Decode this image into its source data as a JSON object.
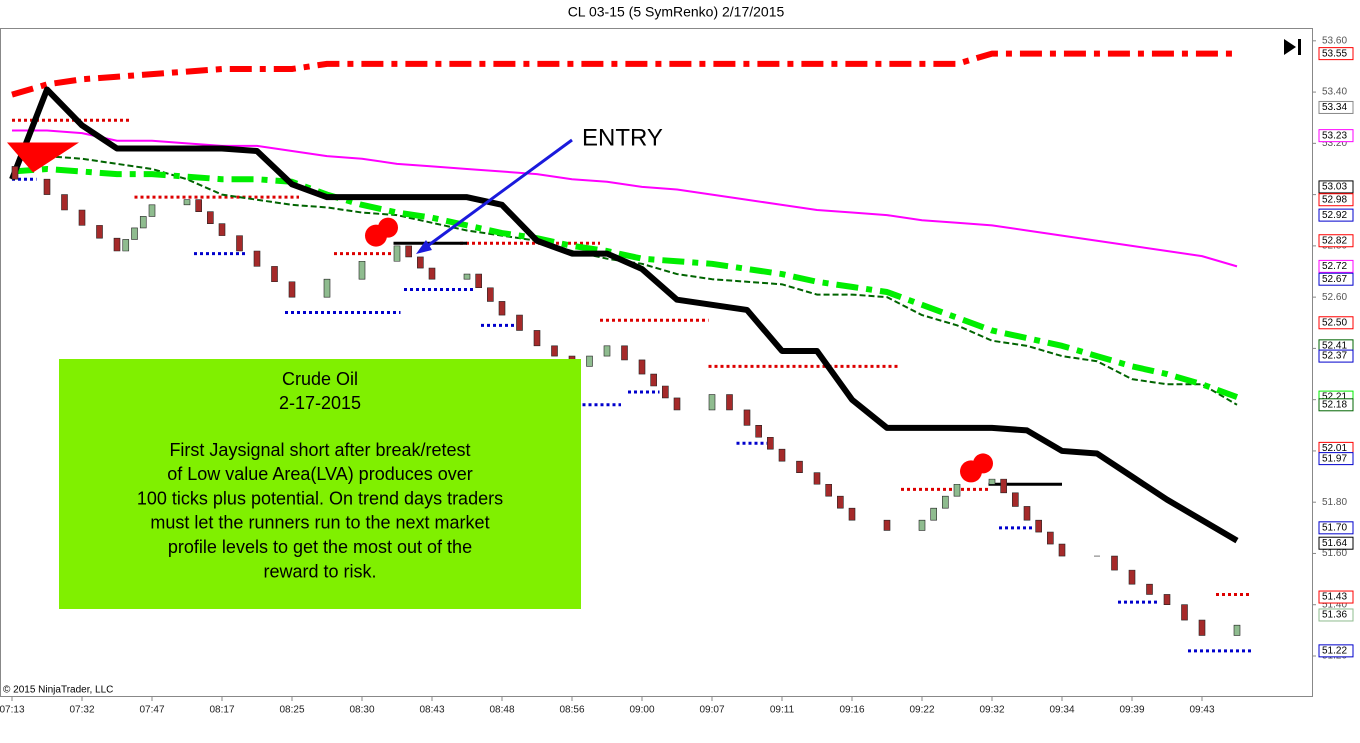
{
  "chart_data": {
    "type": "renko",
    "title": "CL 03-15 (5 SymRenko)  2/17/2015",
    "copyright": "© 2015 NinjaTrader, LLC",
    "annotation": "ENTRY",
    "text_box": {
      "heading": [
        "Crude Oil",
        "2-17-2015"
      ],
      "body": [
        "First Jaysignal short after break/retest",
        "of Low value Area(LVA) produces over",
        "100 ticks plus potential. On trend days traders",
        "must let the runners run to the next market",
        "profile levels to get the most out of the",
        "reward to risk."
      ],
      "color": "#80f000"
    },
    "categories": [
      "07:13",
      null,
      "07:32",
      null,
      "07:47",
      null,
      "08:17",
      null,
      "08:25",
      null,
      "08:30",
      null,
      "08:43",
      null,
      "08:48",
      null,
      "08:56",
      null,
      "09:00",
      null,
      "09:07",
      null,
      "09:11",
      null,
      "09:16",
      null,
      "09:22",
      null,
      "09:32",
      null,
      "09:34",
      null,
      "09:39",
      null,
      "09:43",
      null
    ],
    "ylim": [
      51.04,
      53.65
    ],
    "yticks": [
      {
        "value": 53.6,
        "label": "53.60"
      },
      {
        "value": 53.4,
        "label": "53.40"
      },
      {
        "value": 53.2,
        "label": "53.20"
      },
      {
        "value": 53.0,
        "label": "53.00"
      },
      {
        "value": 52.8,
        "label": "52.80"
      },
      {
        "value": 52.6,
        "label": "52.60"
      },
      {
        "value": 52.4,
        "label": "52.40"
      },
      {
        "value": 52.2,
        "label": "52.20"
      },
      {
        "value": 52.0,
        "label": "52.00"
      },
      {
        "value": 51.8,
        "label": "51.80"
      },
      {
        "value": 51.6,
        "label": "51.60"
      },
      {
        "value": 51.4,
        "label": "51.40"
      },
      {
        "value": 51.2,
        "label": "51.20"
      }
    ],
    "brick_size": 0.05,
    "up_color": "#8fbc8f",
    "down_color": "#a52a2a",
    "values": [
      53.06,
      53.0,
      52.88,
      52.78,
      52.96,
      52.98,
      52.84,
      52.72,
      52.6,
      52.67,
      52.74,
      52.8,
      52.67,
      52.69,
      52.53,
      52.41,
      52.33,
      52.41,
      52.3,
      52.16,
      52.22,
      52.1,
      51.96,
      51.87,
      51.73,
      51.69,
      51.73,
      51.87,
      51.89,
      51.73,
      51.59,
      51.59,
      51.48,
      51.4,
      51.28,
      51.32
    ],
    "series": [
      {
        "color": "#ff0000",
        "style": "dash-dot-thick",
        "values": [
          53.39,
          53.43,
          53.45,
          53.46,
          53.47,
          53.48,
          53.49,
          53.49,
          53.49,
          53.51,
          53.51,
          53.51,
          53.51,
          53.51,
          53.51,
          53.51,
          53.51,
          53.51,
          53.51,
          53.51,
          53.51,
          53.51,
          53.51,
          53.51,
          53.51,
          53.51,
          53.51,
          53.51,
          53.55,
          53.55,
          53.55,
          53.55,
          53.55,
          53.55,
          53.55,
          53.55
        ]
      },
      {
        "color": "#ff00ff",
        "style": "solid",
        "values": [
          53.25,
          53.25,
          53.24,
          53.21,
          53.21,
          53.2,
          53.19,
          53.19,
          53.17,
          53.15,
          53.14,
          53.12,
          53.11,
          53.1,
          53.09,
          53.08,
          53.06,
          53.05,
          53.03,
          53.02,
          53.0,
          52.98,
          52.96,
          52.94,
          52.93,
          52.92,
          52.9,
          52.89,
          52.88,
          52.86,
          52.84,
          52.82,
          52.8,
          52.78,
          52.76,
          52.72
        ]
      },
      {
        "color": "#006400",
        "style": "dashed",
        "values": [
          null,
          53.15,
          53.14,
          53.12,
          53.1,
          53.06,
          53.0,
          52.98,
          52.96,
          52.95,
          52.93,
          52.92,
          52.89,
          52.86,
          52.84,
          52.82,
          52.78,
          52.75,
          52.73,
          52.69,
          52.67,
          52.66,
          52.65,
          52.61,
          52.61,
          52.6,
          52.53,
          52.49,
          52.43,
          52.41,
          52.37,
          52.35,
          52.28,
          52.26,
          52.26,
          52.18
        ]
      },
      {
        "color": "#00ee00",
        "style": "dash-dot-thick",
        "values": [
          53.09,
          53.1,
          53.09,
          53.08,
          53.08,
          53.07,
          53.06,
          53.06,
          53.05,
          53.0,
          52.96,
          52.93,
          52.91,
          52.88,
          52.85,
          52.83,
          52.8,
          52.78,
          52.75,
          52.74,
          52.73,
          52.71,
          52.69,
          52.66,
          52.64,
          52.62,
          52.57,
          52.52,
          52.47,
          52.44,
          52.41,
          52.37,
          52.33,
          52.3,
          52.26,
          52.21
        ]
      },
      {
        "color": "#000000",
        "style": "solid-thick",
        "values": [
          53.06,
          53.41,
          53.27,
          53.18,
          53.18,
          53.18,
          53.18,
          53.17,
          53.04,
          52.99,
          52.99,
          52.99,
          52.99,
          52.99,
          52.96,
          52.82,
          52.77,
          52.77,
          52.71,
          52.59,
          52.57,
          52.55,
          52.39,
          52.39,
          52.2,
          52.09,
          52.09,
          52.09,
          52.09,
          52.08,
          52.0,
          51.99,
          51.9,
          51.81,
          51.73,
          51.65
        ]
      }
    ],
    "levels": [
      {
        "color": "#dd0000",
        "value": 53.29,
        "from": 0,
        "to": 3.4
      },
      {
        "color": "#dd0000",
        "value": 52.99,
        "from": 3.5,
        "to": 8.2
      },
      {
        "color": "#dd0000",
        "value": 52.77,
        "from": 9.2,
        "to": 10.9
      },
      {
        "color": "#dd0000",
        "value": 52.81,
        "from": 12.8,
        "to": 16.8
      },
      {
        "color": "#dd0000",
        "value": 52.51,
        "from": 16.8,
        "to": 19.9
      },
      {
        "color": "#dd0000",
        "value": 52.33,
        "from": 19.9,
        "to": 25.3
      },
      {
        "color": "#dd0000",
        "value": 51.85,
        "from": 25.4,
        "to": 27.9
      },
      {
        "color": "#dd0000",
        "value": 51.44,
        "from": 34.4,
        "to": 35.4
      },
      {
        "color": "#0000cc",
        "value": 53.06,
        "from": 0,
        "to": 0.7
      },
      {
        "color": "#0000cc",
        "value": 52.77,
        "from": 5.2,
        "to": 6.7
      },
      {
        "color": "#0000cc",
        "value": 52.54,
        "from": 7.8,
        "to": 11.1
      },
      {
        "color": "#0000cc",
        "value": 52.63,
        "from": 11.2,
        "to": 13.2
      },
      {
        "color": "#0000cc",
        "value": 52.49,
        "from": 13.4,
        "to": 14.5
      },
      {
        "color": "#0000cc",
        "value": 52.18,
        "from": 16.3,
        "to": 17.4
      },
      {
        "color": "#0000cc",
        "value": 52.23,
        "from": 17.6,
        "to": 18.5
      },
      {
        "color": "#0000cc",
        "value": 52.03,
        "from": 20.7,
        "to": 21.7
      },
      {
        "color": "#0000cc",
        "value": 51.7,
        "from": 28.2,
        "to": 29.2
      },
      {
        "color": "#0000cc",
        "value": 51.41,
        "from": 31.6,
        "to": 32.8
      },
      {
        "color": "#0000cc",
        "value": 51.22,
        "from": 33.6,
        "to": 35.4
      },
      {
        "color": "#000000",
        "value": 52.81,
        "from": 10.9,
        "to": 13.0
      },
      {
        "color": "#000000",
        "value": 51.87,
        "from": 27.9,
        "to": 30.0
      }
    ],
    "signals": [
      {
        "x": 0.2,
        "value": 53.18,
        "shape": "triangle-down",
        "color": "#ff0000"
      },
      {
        "x": 10.4,
        "value": 52.84,
        "shape": "dot",
        "color": "#ff0000"
      },
      {
        "x": 27.4,
        "value": 51.92,
        "shape": "dot",
        "color": "#ff0000"
      }
    ],
    "price_markers": [
      {
        "value": 53.55,
        "label": "53.55",
        "color": "#ff0000"
      },
      {
        "value": 53.34,
        "label": "53.34",
        "color": "#888888"
      },
      {
        "value": 53.23,
        "label": "53.23",
        "color": "#ff00ff"
      },
      {
        "value": 53.03,
        "label": "53.03",
        "color": "#000000"
      },
      {
        "value": 52.98,
        "label": "52.98",
        "color": "#ff0000"
      },
      {
        "value": 52.92,
        "label": "52.92",
        "color": "#0000cc"
      },
      {
        "value": 52.82,
        "label": "52.82",
        "color": "#ff0000"
      },
      {
        "value": 52.72,
        "label": "52.72",
        "color": "#ff00ff"
      },
      {
        "value": 52.67,
        "label": "52.67",
        "color": "#0000cc"
      },
      {
        "value": 52.5,
        "label": "52.50",
        "color": "#ff0000"
      },
      {
        "value": 52.41,
        "label": "52.41",
        "color": "#006400"
      },
      {
        "value": 52.37,
        "label": "52.37",
        "color": "#0000cc"
      },
      {
        "value": 52.21,
        "label": "52.21",
        "color": "#00ee00"
      },
      {
        "value": 52.18,
        "label": "52.18",
        "color": "#006400"
      },
      {
        "value": 52.01,
        "label": "52.01",
        "color": "#ff0000"
      },
      {
        "value": 51.97,
        "label": "51.97",
        "color": "#0000cc"
      },
      {
        "value": 51.7,
        "label": "51.70",
        "color": "#0000cc"
      },
      {
        "value": 51.64,
        "label": "51.64",
        "color": "#000000"
      },
      {
        "value": 51.43,
        "label": "51.43",
        "color": "#ff0000"
      },
      {
        "value": 51.36,
        "label": "51.36",
        "color": "#8fbc8f"
      },
      {
        "value": 51.22,
        "label": "51.22",
        "color": "#0000cc"
      }
    ]
  }
}
